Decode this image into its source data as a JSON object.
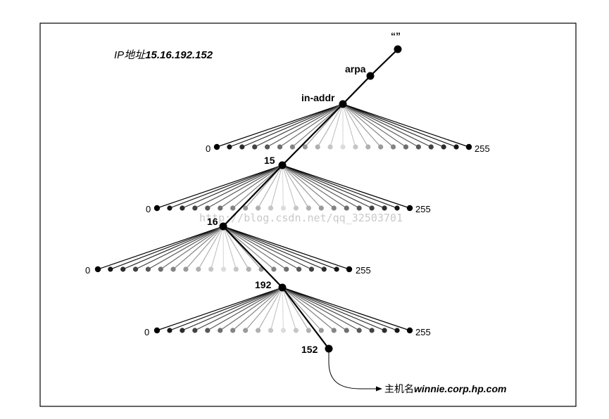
{
  "title": {
    "ip_prefix": "IP地址",
    "ip_value": "15.16.192.152"
  },
  "nodes": {
    "root": "“”",
    "arpa": "arpa",
    "in_addr": "in-addr",
    "n15": "15",
    "n16": "16",
    "n192": "192",
    "n152": "152"
  },
  "fan_labels": {
    "low": "0",
    "high": "255"
  },
  "hostname": {
    "prefix": "主机名",
    "value": "winnie.corp.hp.com"
  },
  "watermark": "http://blog.csdn.net/qq_32503701",
  "fan_child_count": 21,
  "colors": {
    "line": "#000000",
    "child_edge": "#000000",
    "child_center": "#dcdcdc"
  }
}
